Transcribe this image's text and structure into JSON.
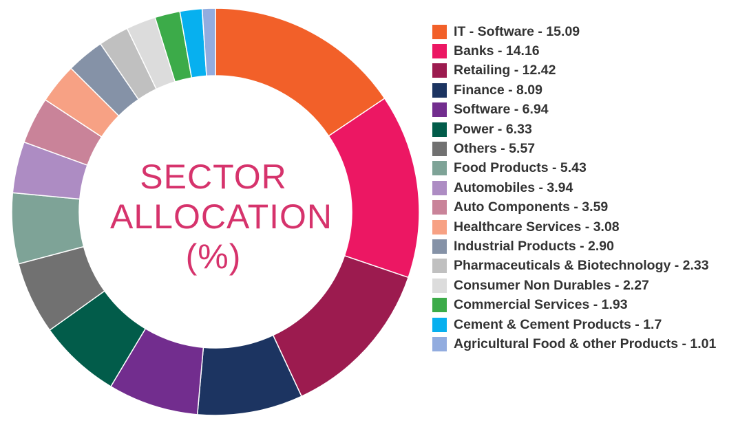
{
  "chart_data": {
    "type": "pie",
    "title": "SECTOR ALLOCATION (%)",
    "title_lines": [
      "SECTOR",
      "ALLOCATION",
      "(%)"
    ],
    "legend_position": "right",
    "slices": [
      {
        "label": "IT - Software - 15.09",
        "name": "IT - Software",
        "value": 15.09,
        "color": "#f26029"
      },
      {
        "label": "Banks - 14.16",
        "name": "Banks",
        "value": 14.16,
        "color": "#ec1763"
      },
      {
        "label": "Retailing - 12.42",
        "name": "Retailing",
        "value": 12.42,
        "color": "#9c1b4f"
      },
      {
        "label": "Finance - 8.09",
        "name": "Finance",
        "value": 8.09,
        "color": "#1c3461"
      },
      {
        "label": "Software - 6.94",
        "name": "Software",
        "value": 6.94,
        "color": "#722d8e"
      },
      {
        "label": "Power - 6.33",
        "name": "Power",
        "value": 6.33,
        "color": "#025c4a"
      },
      {
        "label": "Others - 5.57",
        "name": "Others",
        "value": 5.57,
        "color": "#717171"
      },
      {
        "label": "Food Products - 5.43",
        "name": "Food Products",
        "value": 5.43,
        "color": "#7ea397"
      },
      {
        "label": "Automobiles - 3.94",
        "name": "Automobiles",
        "value": 3.94,
        "color": "#ad8cc3"
      },
      {
        "label": "Auto Components - 3.59",
        "name": "Auto Components",
        "value": 3.59,
        "color": "#c98399"
      },
      {
        "label": "Healthcare Services - 3.08",
        "name": "Healthcare Services",
        "value": 3.08,
        "color": "#f7a184"
      },
      {
        "label": "Industrial Products - 2.90",
        "name": "Industrial Products",
        "value": 2.9,
        "color": "#8592a7"
      },
      {
        "label": "Pharmaceuticals & Biotechnology - 2.33",
        "name": "Pharmaceuticals & Biotechnology",
        "value": 2.33,
        "color": "#c0c0c0"
      },
      {
        "label": "Consumer Non Durables - 2.27",
        "name": "Consumer Non Durables",
        "value": 2.27,
        "color": "#dcdcdc"
      },
      {
        "label": "Commercial Services - 1.93",
        "name": "Commercial Services",
        "value": 1.93,
        "color": "#3cab49"
      },
      {
        "label": "Cement & Cement Products  - 1.7",
        "name": "Cement & Cement Products",
        "value": 1.7,
        "color": "#07b0ef"
      },
      {
        "label": "Agricultural Food & other Products  - 1.01",
        "name": "Agricultural Food & other Products",
        "value": 1.01,
        "color": "#92acdf"
      }
    ]
  }
}
